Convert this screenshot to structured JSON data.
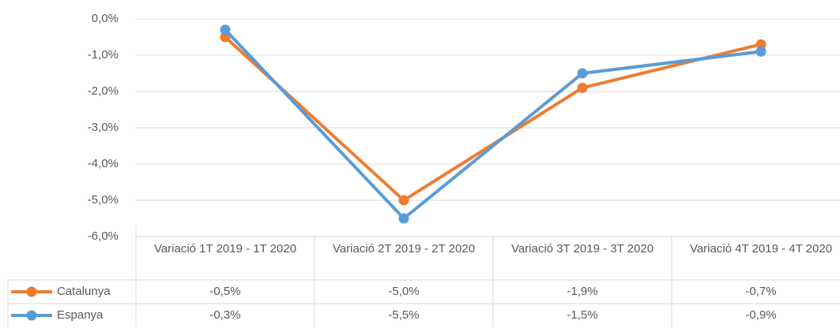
{
  "chart_data": {
    "type": "line",
    "categories": [
      "Variació 1T 2019 - 1T 2020",
      "Variació 2T 2019 - 2T 2020",
      "Variació 3T 2019 - 3T 2020",
      "Variació 4T 2019 - 4T 2020"
    ],
    "series": [
      {
        "name": "Catalunya",
        "color": "#ed7d31",
        "values": [
          -0.5,
          -5.0,
          -1.9,
          -0.7
        ],
        "value_labels": [
          "-0,5%",
          "-5,0%",
          "-1,9%",
          "-0,7%"
        ]
      },
      {
        "name": "Espanya",
        "color": "#5b9bd5",
        "values": [
          -0.3,
          -5.5,
          -1.5,
          -0.9
        ],
        "value_labels": [
          "-0,3%",
          "-5,5%",
          "-1,5%",
          "-0,9%"
        ]
      }
    ],
    "ylim": [
      -6,
      0
    ],
    "yticks": [
      {
        "value": 0,
        "label": "0,0%"
      },
      {
        "value": -1,
        "label": "-1,0%"
      },
      {
        "value": -2,
        "label": "-2,0%"
      },
      {
        "value": -3,
        "label": "-3,0%"
      },
      {
        "value": -4,
        "label": "-4,0%"
      },
      {
        "value": -5,
        "label": "-5,0%"
      },
      {
        "value": -6,
        "label": "-6,0%"
      }
    ],
    "grid": true,
    "legend": "table"
  }
}
